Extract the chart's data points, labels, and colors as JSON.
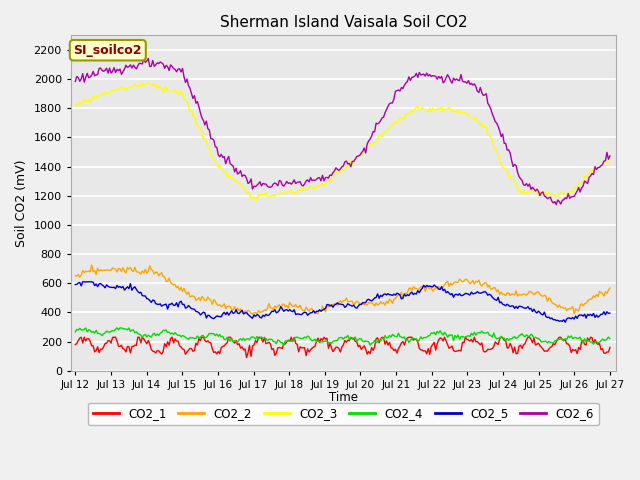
{
  "title": "Sherman Island Vaisala Soil CO2",
  "ylabel": "Soil CO2 (mV)",
  "xlabel": "Time",
  "annotation": "SI_soilco2",
  "ylim": [
    0,
    2300
  ],
  "yticks": [
    0,
    200,
    400,
    600,
    800,
    1000,
    1200,
    1400,
    1600,
    1800,
    2000,
    2200
  ],
  "xtick_labels": [
    "Jul 12",
    "Jul 13",
    "Jul 14",
    "Jul 15",
    "Jul 16",
    "Jul 17",
    "Jul 18",
    "Jul 19",
    "Jul 20",
    "Jul 21",
    "Jul 22",
    "Jul 23",
    "Jul 24",
    "Jul 25",
    "Jul 26",
    "Jul 27"
  ],
  "plot_bg": "#e8e8e8",
  "fig_bg": "#f0f0f0",
  "grid_color": "#ffffff",
  "series_colors": {
    "CO2_1": "#ff0000",
    "CO2_2": "#ffa500",
    "CO2_3": "#ffff00",
    "CO2_4": "#00dd00",
    "CO2_5": "#0000cc",
    "CO2_6": "#aa00aa"
  },
  "legend_labels": [
    "CO2_1",
    "CO2_2",
    "CO2_3",
    "CO2_4",
    "CO2_5",
    "CO2_6"
  ],
  "legend_colors": [
    "#ff0000",
    "#ffa500",
    "#ffff00",
    "#00dd00",
    "#0000cc",
    "#aa00aa"
  ]
}
